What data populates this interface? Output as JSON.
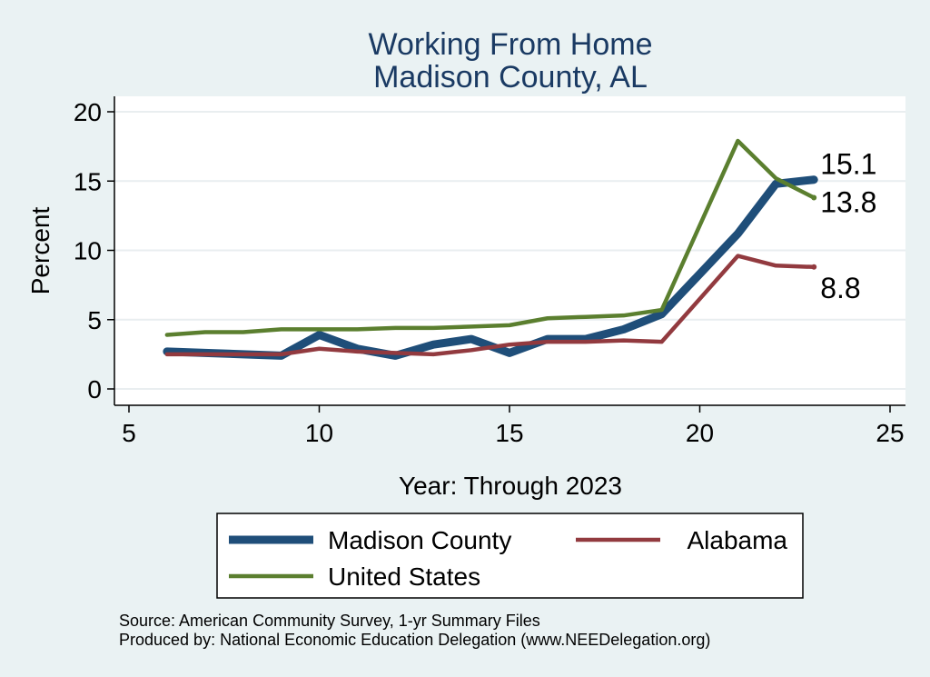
{
  "chart_data": {
    "type": "line",
    "title": [
      "Working From Home",
      "Madison County, AL"
    ],
    "xlabel": "Year: Through 2023",
    "ylabel": "Percent",
    "xlim": [
      5,
      25
    ],
    "ylim": [
      0,
      20
    ],
    "xticks": [
      5,
      10,
      15,
      20,
      25
    ],
    "yticks": [
      0,
      5,
      10,
      15,
      20
    ],
    "grid": true,
    "series": [
      {
        "name": "Madison County",
        "color": "#1f4e79",
        "x": [
          6,
          7,
          8,
          9,
          10,
          11,
          12,
          13,
          14,
          15,
          16,
          17,
          18,
          19,
          21,
          22,
          23
        ],
        "y": [
          2.7,
          2.6,
          2.5,
          2.4,
          3.9,
          2.9,
          2.4,
          3.2,
          3.6,
          2.6,
          3.6,
          3.6,
          4.3,
          5.4,
          11.2,
          14.8,
          15.1
        ],
        "end_label": "15.1"
      },
      {
        "name": "Alabama",
        "color": "#923a3f",
        "x": [
          6,
          7,
          8,
          9,
          10,
          11,
          12,
          13,
          14,
          15,
          16,
          17,
          18,
          19,
          21,
          22,
          23
        ],
        "y": [
          2.5,
          2.5,
          2.5,
          2.5,
          2.9,
          2.7,
          2.6,
          2.5,
          2.8,
          3.2,
          3.4,
          3.4,
          3.5,
          3.4,
          9.6,
          8.9,
          8.8
        ],
        "end_label": "8.8"
      },
      {
        "name": "United States",
        "color": "#5b7f2f",
        "x": [
          6,
          7,
          8,
          9,
          10,
          11,
          12,
          13,
          14,
          15,
          16,
          17,
          18,
          19,
          21,
          22,
          23
        ],
        "y": [
          3.9,
          4.1,
          4.1,
          4.3,
          4.3,
          4.3,
          4.4,
          4.4,
          4.5,
          4.6,
          5.1,
          5.2,
          5.3,
          5.7,
          17.9,
          15.2,
          13.8
        ],
        "end_label": "13.8"
      }
    ],
    "legend": {
      "placement": "bottom",
      "order": [
        "Madison County",
        "Alabama",
        "United States"
      ]
    }
  },
  "footer": {
    "source": "Source: American Community Survey, 1-yr Summary Files",
    "produced_by": "Produced by: National Economic Education Delegation (www.NEEDelegation.org)"
  }
}
